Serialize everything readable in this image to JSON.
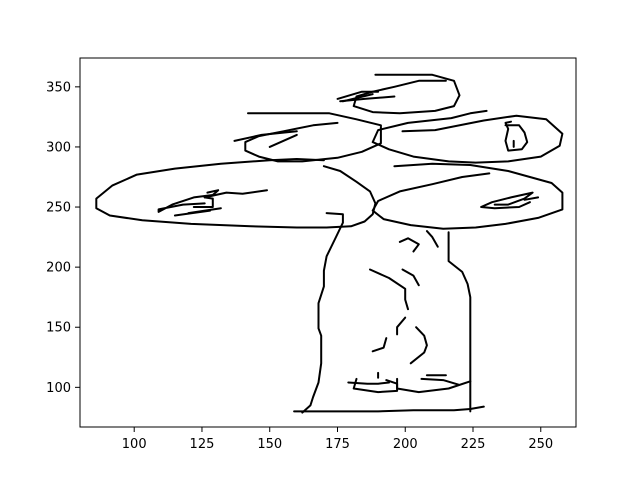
{
  "chart_data": {
    "type": "line",
    "title": "",
    "xlabel": "",
    "ylabel": "",
    "xlim": [
      80,
      263
    ],
    "ylim": [
      67,
      374
    ],
    "xticks": [
      100,
      125,
      150,
      175,
      200,
      225,
      250
    ],
    "yticks": [
      100,
      150,
      200,
      250,
      300,
      350
    ],
    "xtick_labels": [
      "100",
      "125",
      "150",
      "175",
      "200",
      "225",
      "250"
    ],
    "ytick_labels": [
      "100",
      "150",
      "200",
      "250",
      "300",
      "350"
    ],
    "grid": false,
    "line_color": "#000000",
    "series": [
      {
        "points": [
          [
            142,
            328
          ],
          [
            172,
            328
          ],
          [
            182,
            323
          ],
          [
            191,
            318
          ],
          [
            191,
            303
          ],
          [
            184,
            296
          ],
          [
            175,
            291
          ],
          [
            162,
            288
          ],
          [
            153,
            288
          ],
          [
            146,
            292
          ],
          [
            141,
            297
          ],
          [
            141,
            304
          ],
          [
            146,
            309
          ],
          [
            155,
            313
          ],
          [
            166,
            318
          ],
          [
            175,
            320
          ]
        ]
      },
      {
        "points": [
          [
            150,
            300
          ],
          [
            160,
            310
          ]
        ]
      },
      {
        "points": [
          [
            137,
            305
          ],
          [
            147,
            310
          ],
          [
            160,
            313
          ]
        ]
      },
      {
        "points": [
          [
            189,
            360
          ],
          [
            210,
            360
          ],
          [
            218,
            355
          ],
          [
            220,
            343
          ],
          [
            218,
            334
          ],
          [
            211,
            330
          ],
          [
            198,
            328
          ],
          [
            188,
            329
          ],
          [
            181,
            334
          ],
          [
            182,
            342
          ],
          [
            188,
            346
          ],
          [
            196,
            350
          ],
          [
            205,
            355
          ],
          [
            215,
            355
          ]
        ]
      },
      {
        "points": [
          [
            175,
            340
          ],
          [
            184,
            346
          ],
          [
            190,
            346
          ]
        ]
      },
      {
        "points": [
          [
            177,
            338
          ],
          [
            188,
            344
          ]
        ]
      },
      {
        "points": [
          [
            176,
            338
          ],
          [
            185,
            340
          ],
          [
            196,
            342
          ]
        ]
      },
      {
        "points": [
          [
            199,
            313
          ],
          [
            211,
            314
          ],
          [
            229,
            322
          ],
          [
            241,
            326
          ],
          [
            252,
            323
          ],
          [
            258,
            311
          ],
          [
            257,
            301
          ],
          [
            250,
            292
          ],
          [
            238,
            288
          ],
          [
            226,
            287
          ],
          [
            216,
            288
          ],
          [
            203,
            292
          ],
          [
            194,
            298
          ],
          [
            188,
            304
          ],
          [
            190,
            314
          ],
          [
            201,
            320
          ],
          [
            217,
            324
          ],
          [
            224,
            328
          ],
          [
            230,
            330
          ]
        ]
      },
      {
        "points": [
          [
            237,
            318
          ],
          [
            242,
            318
          ],
          [
            244,
            312
          ],
          [
            245,
            304
          ],
          [
            243,
            298
          ],
          [
            238,
            297
          ],
          [
            237,
            305
          ],
          [
            238,
            315
          ],
          [
            237,
            320
          ],
          [
            239,
            321
          ]
        ]
      },
      {
        "points": [
          [
            240,
            305
          ],
          [
            240,
            300
          ]
        ]
      },
      {
        "points": [
          [
            196,
            284
          ],
          [
            210,
            286
          ],
          [
            224,
            285
          ],
          [
            238,
            280
          ],
          [
            246,
            275
          ],
          [
            254,
            270
          ],
          [
            258,
            262
          ],
          [
            258,
            248
          ],
          [
            249,
            241
          ],
          [
            237,
            236
          ],
          [
            226,
            233
          ],
          [
            214,
            232
          ],
          [
            202,
            235
          ],
          [
            192,
            240
          ],
          [
            188,
            247
          ],
          [
            190,
            255
          ],
          [
            198,
            263
          ],
          [
            210,
            269
          ],
          [
            221,
            275
          ],
          [
            231,
            278
          ]
        ]
      },
      {
        "points": [
          [
            233,
            252
          ],
          [
            238,
            252
          ],
          [
            244,
            257
          ],
          [
            247,
            262
          ],
          [
            239,
            258
          ],
          [
            232,
            254
          ],
          [
            228,
            250
          ],
          [
            233,
            249
          ],
          [
            242,
            250
          ],
          [
            246,
            254
          ]
        ]
      },
      {
        "points": [
          [
            244,
            256
          ],
          [
            249,
            258
          ]
        ]
      },
      {
        "points": [
          [
            170,
            289
          ],
          [
            160,
            290
          ],
          [
            150,
            289
          ],
          [
            132,
            286
          ],
          [
            115,
            282
          ],
          [
            101,
            277
          ],
          [
            92,
            268
          ],
          [
            86,
            257
          ],
          [
            86,
            249
          ],
          [
            91,
            243
          ],
          [
            103,
            239
          ],
          [
            121,
            236
          ],
          [
            143,
            234
          ],
          [
            160,
            233
          ],
          [
            171,
            233
          ],
          [
            180,
            234
          ],
          [
            185,
            238
          ],
          [
            188,
            244
          ],
          [
            189,
            253
          ],
          [
            187,
            263
          ],
          [
            182,
            271
          ],
          [
            176,
            280
          ],
          [
            170,
            284
          ]
        ]
      },
      {
        "points": [
          [
            126,
            258
          ],
          [
            134,
            262
          ],
          [
            140,
            261
          ],
          [
            149,
            264
          ]
        ]
      },
      {
        "points": [
          [
            127,
            262
          ],
          [
            131,
            264
          ],
          [
            129,
            260
          ],
          [
            122,
            258
          ],
          [
            114,
            252
          ],
          [
            109,
            246
          ],
          [
            109,
            248
          ],
          [
            118,
            252
          ],
          [
            126,
            253
          ]
        ]
      },
      {
        "points": [
          [
            126,
            258
          ],
          [
            129,
            257
          ],
          [
            129,
            250
          ],
          [
            122,
            250
          ]
        ]
      },
      {
        "points": [
          [
            120,
            245
          ],
          [
            132,
            249
          ]
        ]
      },
      {
        "points": [
          [
            115,
            243
          ],
          [
            128,
            247
          ]
        ]
      },
      {
        "points": [
          [
            171,
            245
          ],
          [
            177,
            244
          ],
          [
            177,
            237
          ],
          [
            174,
            223
          ],
          [
            171,
            209
          ],
          [
            170,
            197
          ],
          [
            170,
            184
          ],
          [
            168,
            170
          ],
          [
            168,
            149
          ],
          [
            169,
            143
          ],
          [
            169,
            120
          ],
          [
            168,
            104
          ],
          [
            166,
            92
          ],
          [
            165,
            85
          ],
          [
            162,
            79
          ]
        ]
      },
      {
        "points": [
          [
            159,
            80
          ],
          [
            174,
            80
          ],
          [
            190,
            80
          ],
          [
            203,
            81
          ],
          [
            218,
            81
          ],
          [
            224,
            82
          ],
          [
            229,
            84
          ]
        ]
      },
      {
        "points": [
          [
            216,
            229
          ],
          [
            216,
            205
          ],
          [
            221,
            196
          ],
          [
            223,
            186
          ],
          [
            224,
            175
          ],
          [
            224,
            155
          ],
          [
            224,
            138
          ],
          [
            224,
            120
          ],
          [
            224,
            107
          ],
          [
            224,
            98
          ],
          [
            224,
            80
          ]
        ]
      },
      {
        "points": [
          [
            187,
            198
          ],
          [
            194,
            191
          ],
          [
            200,
            182
          ],
          [
            200,
            173
          ],
          [
            201,
            165
          ]
        ]
      },
      {
        "points": [
          [
            199,
            198
          ],
          [
            203,
            193
          ],
          [
            205,
            185
          ]
        ]
      },
      {
        "points": [
          [
            198,
            221
          ],
          [
            201,
            224
          ],
          [
            205,
            219
          ],
          [
            203,
            213
          ]
        ]
      },
      {
        "points": [
          [
            208,
            230
          ],
          [
            210,
            225
          ],
          [
            212,
            217
          ]
        ]
      },
      {
        "points": [
          [
            197,
            144
          ],
          [
            197,
            150
          ],
          [
            200,
            158
          ]
        ]
      },
      {
        "points": [
          [
            188,
            130
          ],
          [
            192,
            133
          ],
          [
            193,
            141
          ]
        ]
      },
      {
        "points": [
          [
            202,
            120
          ],
          [
            207,
            129
          ],
          [
            208,
            135
          ],
          [
            207,
            143
          ],
          [
            204,
            150
          ]
        ]
      },
      {
        "points": [
          [
            197,
            107
          ],
          [
            197,
            99
          ],
          [
            205,
            96
          ],
          [
            216,
            99
          ],
          [
            224,
            105
          ],
          [
            220,
            102
          ],
          [
            214,
            106
          ],
          [
            206,
            107
          ]
        ]
      },
      {
        "points": [
          [
            182,
            107
          ],
          [
            181,
            99
          ],
          [
            190,
            96
          ],
          [
            197,
            97
          ],
          [
            197,
            103
          ],
          [
            193,
            106
          ]
        ]
      },
      {
        "points": [
          [
            179,
            104
          ],
          [
            186,
            103
          ],
          [
            190,
            103
          ],
          [
            194,
            104
          ]
        ]
      },
      {
        "points": [
          [
            208,
            110
          ],
          [
            215,
            110
          ]
        ]
      },
      {
        "points": [
          [
            190,
            108
          ],
          [
            190,
            112
          ]
        ]
      }
    ]
  }
}
